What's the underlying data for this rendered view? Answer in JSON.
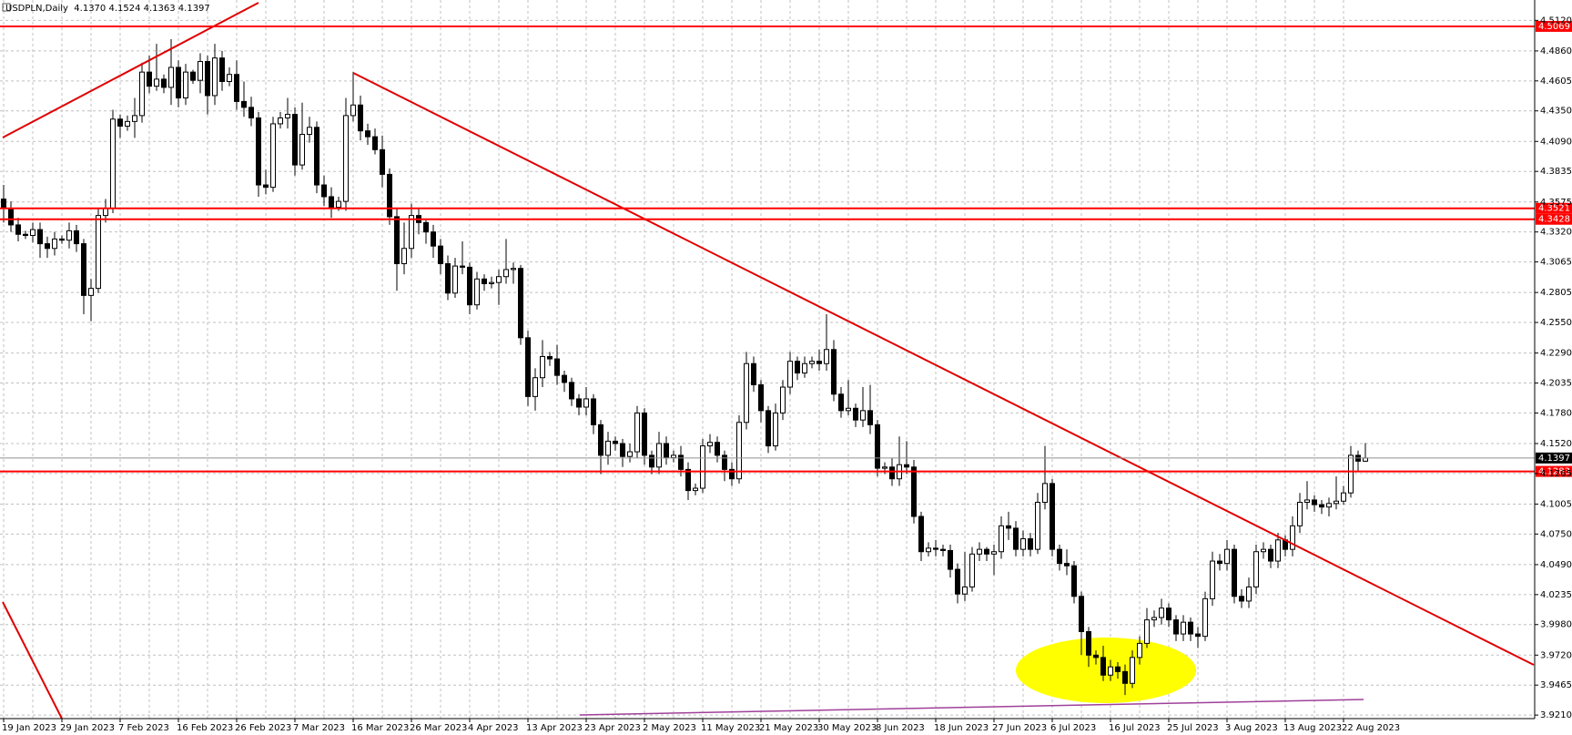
{
  "chart_data": {
    "type": "candlestick",
    "title": "USDPLN,Daily  4.1370 4.1524 4.1363 4.1397",
    "categories": [
      "19 Jan 2023",
      null,
      null,
      null,
      null,
      null,
      null,
      null,
      "29 Jan 2023",
      null,
      null,
      null,
      null,
      null,
      null,
      null,
      "7 Feb 2023",
      null,
      null,
      null,
      null,
      null,
      null,
      null,
      "16 Feb 2023",
      null,
      null,
      null,
      null,
      null,
      null,
      null,
      "26 Feb 2023",
      null,
      null,
      null,
      null,
      null,
      null,
      null,
      "7 Mar 2023",
      null,
      null,
      null,
      null,
      null,
      null,
      null,
      "16 Mar 2023",
      null,
      null,
      null,
      null,
      null,
      null,
      null,
      "26 Mar 2023",
      null,
      null,
      null,
      null,
      null,
      null,
      null,
      "4 Apr 2023",
      null,
      null,
      null,
      null,
      null,
      null,
      null,
      "13 Apr 2023",
      null,
      null,
      null,
      null,
      null,
      null,
      null,
      "23 Apr 2023",
      null,
      null,
      null,
      null,
      null,
      null,
      null,
      "2 May 2023",
      null,
      null,
      null,
      null,
      null,
      null,
      null,
      "11 May 2023",
      null,
      null,
      null,
      null,
      null,
      null,
      null,
      "21 May 2023",
      null,
      null,
      null,
      null,
      null,
      null,
      null,
      "30 May 2023",
      null,
      null,
      null,
      null,
      null,
      null,
      null,
      "8 Jun 2023",
      null,
      null,
      null,
      null,
      null,
      null,
      null,
      "18 Jun 2023",
      null,
      null,
      null,
      null,
      null,
      null,
      null,
      "27 Jun 2023",
      null,
      null,
      null,
      null,
      null,
      null,
      null,
      "6 Jul 2023",
      null,
      null,
      null,
      null,
      null,
      null,
      null,
      "16 Jul 2023",
      null,
      null,
      null,
      null,
      null,
      null,
      null,
      "25 Jul 2023",
      null,
      null,
      null,
      null,
      null,
      null,
      null,
      "3 Aug 2023",
      null,
      null,
      null,
      null,
      null,
      null,
      null,
      "13 Aug 2023",
      null,
      null,
      null,
      null,
      null,
      null,
      null,
      "22 Aug 2023",
      null,
      null,
      null
    ],
    "open": [
      4.36,
      4.352,
      4.338,
      4.33,
      4.329,
      4.334,
      4.322,
      4.318,
      4.326,
      4.325,
      4.333,
      4.322,
      4.278,
      4.284,
      4.346,
      4.352,
      4.428,
      4.422,
      4.426,
      4.431,
      4.468,
      4.456,
      4.462,
      4.455,
      4.472,
      4.446,
      4.468,
      4.461,
      4.477,
      4.448,
      4.48,
      4.46,
      4.466,
      4.443,
      4.438,
      4.429,
      4.372,
      4.37,
      4.424,
      4.429,
      4.432,
      4.389,
      4.415,
      4.421,
      4.372,
      4.362,
      4.353,
      4.358,
      4.431,
      4.44,
      4.418,
      4.413,
      4.402,
      4.381,
      4.345,
      4.305,
      4.318,
      4.346,
      4.34,
      4.332,
      4.32,
      4.305,
      4.28,
      4.303,
      4.302,
      4.27,
      4.292,
      4.288,
      4.289,
      4.294,
      4.3,
      4.301,
      4.242,
      4.192,
      4.208,
      4.226,
      4.224,
      4.21,
      4.204,
      4.19,
      4.183,
      4.19,
      4.168,
      4.142,
      4.154,
      4.152,
      4.141,
      4.145,
      4.178,
      4.142,
      4.132,
      4.152,
      4.14,
      4.142,
      4.13,
      4.112,
      4.114,
      4.15,
      4.153,
      4.142,
      4.13,
      4.122,
      4.17,
      4.22,
      4.202,
      4.18,
      4.15,
      4.178,
      4.2,
      4.222,
      4.212,
      4.22,
      4.222,
      4.22,
      4.232,
      4.194,
      4.18,
      4.182,
      4.172,
      4.18,
      4.168,
      4.131,
      4.132,
      4.122,
      4.134,
      4.132,
      4.09,
      4.06,
      4.063,
      4.062,
      4.061,
      4.045,
      4.024,
      4.03,
      4.058,
      4.062,
      4.058,
      4.06,
      4.082,
      4.08,
      4.062,
      4.071,
      4.062,
      4.102,
      4.118,
      4.062,
      4.05,
      4.048,
      4.022,
      3.992,
      3.972,
      3.97,
      3.955,
      3.962,
      3.958,
      3.948,
      3.97,
      3.982,
      4.002,
      4.004,
      4.012,
      4.002,
      3.99,
      4.0,
      3.99,
      3.988,
      4.02,
      4.052,
      4.05,
      4.062,
      4.022,
      4.018,
      4.03,
      4.06,
      4.062,
      4.052,
      4.07,
      4.062,
      4.082,
      4.102,
      4.104,
      4.1,
      4.098,
      4.101,
      4.103,
      4.11,
      4.142,
      4.137
    ],
    "high": [
      4.372,
      4.358,
      4.344,
      4.333,
      4.34,
      4.34,
      4.328,
      4.332,
      4.329,
      4.34,
      4.338,
      4.326,
      4.292,
      4.352,
      4.36,
      4.436,
      4.432,
      4.431,
      4.446,
      4.476,
      4.482,
      4.492,
      4.466,
      4.496,
      4.478,
      4.475,
      4.47,
      4.484,
      4.482,
      4.492,
      4.486,
      4.472,
      4.478,
      4.46,
      4.447,
      4.434,
      4.385,
      4.43,
      4.434,
      4.446,
      4.438,
      4.442,
      4.43,
      4.426,
      4.38,
      4.37,
      4.362,
      4.446,
      4.468,
      4.448,
      4.424,
      4.42,
      4.414,
      4.386,
      4.352,
      4.34,
      4.356,
      4.352,
      4.342,
      4.338,
      4.326,
      4.312,
      4.31,
      4.324,
      4.306,
      4.298,
      4.296,
      4.294,
      4.3,
      4.326,
      4.306,
      4.304,
      4.248,
      4.216,
      4.24,
      4.23,
      4.236,
      4.214,
      4.208,
      4.194,
      4.2,
      4.194,
      4.172,
      4.162,
      4.158,
      4.156,
      4.152,
      4.184,
      4.182,
      4.146,
      4.162,
      4.158,
      4.146,
      4.15,
      4.136,
      4.118,
      4.156,
      4.16,
      4.158,
      4.146,
      4.136,
      4.176,
      4.23,
      4.226,
      4.206,
      4.184,
      4.186,
      4.206,
      4.23,
      4.226,
      4.226,
      4.226,
      4.232,
      4.262,
      4.24,
      4.2,
      4.206,
      4.186,
      4.2,
      4.202,
      4.172,
      4.136,
      4.14,
      4.158,
      4.154,
      4.138,
      4.094,
      4.068,
      4.07,
      4.066,
      4.066,
      4.05,
      4.06,
      4.064,
      4.068,
      4.064,
      4.066,
      4.09,
      4.094,
      4.086,
      4.078,
      4.076,
      4.11,
      4.15,
      4.122,
      4.066,
      4.062,
      4.052,
      4.026,
      3.996,
      3.976,
      3.98,
      3.968,
      3.966,
      3.964,
      3.976,
      3.988,
      4.012,
      4.01,
      4.02,
      4.016,
      4.006,
      4.006,
      4.004,
      3.996,
      4.026,
      4.06,
      4.058,
      4.07,
      4.066,
      4.028,
      4.038,
      4.066,
      4.068,
      4.066,
      4.076,
      4.074,
      4.09,
      4.11,
      4.12,
      4.108,
      4.104,
      4.106,
      4.124,
      4.116,
      4.15,
      4.146,
      4.1524
    ],
    "low": [
      4.34,
      4.332,
      4.324,
      4.326,
      4.323,
      4.31,
      4.31,
      4.312,
      4.322,
      4.318,
      4.315,
      4.262,
      4.256,
      4.28,
      4.34,
      4.348,
      4.412,
      4.418,
      4.412,
      4.425,
      4.45,
      4.452,
      4.45,
      4.44,
      4.438,
      4.44,
      4.458,
      4.45,
      4.432,
      4.44,
      4.452,
      4.456,
      4.436,
      4.43,
      4.422,
      4.362,
      4.364,
      4.366,
      4.42,
      4.42,
      4.38,
      4.385,
      4.408,
      4.365,
      4.354,
      4.344,
      4.35,
      4.35,
      4.426,
      4.41,
      4.406,
      4.398,
      4.37,
      4.338,
      4.282,
      4.296,
      4.31,
      4.33,
      4.322,
      4.31,
      4.296,
      4.274,
      4.276,
      4.296,
      4.262,
      4.266,
      4.282,
      4.284,
      4.27,
      4.288,
      4.288,
      4.236,
      4.184,
      4.18,
      4.2,
      4.218,
      4.202,
      4.196,
      4.184,
      4.176,
      4.176,
      4.16,
      4.126,
      4.134,
      4.146,
      4.132,
      4.136,
      4.14,
      4.134,
      4.126,
      4.126,
      4.134,
      4.136,
      4.124,
      4.104,
      4.108,
      4.11,
      4.144,
      4.136,
      4.12,
      4.116,
      4.118,
      4.164,
      4.196,
      4.17,
      4.144,
      4.146,
      4.172,
      4.194,
      4.206,
      4.208,
      4.216,
      4.214,
      4.214,
      4.188,
      4.174,
      4.176,
      4.166,
      4.166,
      4.16,
      4.124,
      4.126,
      4.116,
      4.116,
      4.126,
      4.084,
      4.052,
      4.056,
      4.056,
      4.056,
      4.038,
      4.016,
      4.018,
      4.026,
      4.052,
      4.052,
      4.04,
      4.054,
      4.07,
      4.056,
      4.056,
      4.056,
      4.058,
      4.096,
      4.056,
      4.044,
      4.04,
      4.016,
      3.972,
      3.962,
      3.964,
      3.95,
      3.95,
      3.952,
      3.938,
      3.944,
      3.964,
      3.978,
      3.996,
      3.998,
      3.996,
      3.984,
      3.984,
      3.984,
      3.978,
      3.984,
      4.014,
      4.044,
      4.044,
      4.016,
      4.012,
      4.012,
      4.024,
      4.054,
      4.046,
      4.046,
      4.056,
      4.056,
      4.076,
      4.096,
      4.094,
      4.092,
      4.09,
      4.096,
      4.1,
      4.106,
      4.128,
      4.1363
    ],
    "close": [
      4.352,
      4.338,
      4.33,
      4.329,
      4.334,
      4.322,
      4.318,
      4.326,
      4.325,
      4.333,
      4.322,
      4.278,
      4.284,
      4.346,
      4.352,
      4.428,
      4.422,
      4.426,
      4.431,
      4.468,
      4.456,
      4.462,
      4.455,
      4.472,
      4.446,
      4.468,
      4.461,
      4.477,
      4.448,
      4.48,
      4.46,
      4.466,
      4.443,
      4.438,
      4.429,
      4.372,
      4.37,
      4.424,
      4.429,
      4.432,
      4.389,
      4.415,
      4.421,
      4.372,
      4.362,
      4.353,
      4.358,
      4.431,
      4.44,
      4.418,
      4.413,
      4.402,
      4.381,
      4.345,
      4.305,
      4.318,
      4.346,
      4.34,
      4.332,
      4.32,
      4.305,
      4.28,
      4.303,
      4.302,
      4.27,
      4.292,
      4.288,
      4.289,
      4.294,
      4.3,
      4.301,
      4.242,
      4.192,
      4.208,
      4.226,
      4.224,
      4.21,
      4.204,
      4.19,
      4.183,
      4.19,
      4.168,
      4.142,
      4.154,
      4.152,
      4.141,
      4.145,
      4.178,
      4.142,
      4.132,
      4.152,
      4.14,
      4.142,
      4.13,
      4.112,
      4.114,
      4.15,
      4.153,
      4.142,
      4.13,
      4.122,
      4.17,
      4.22,
      4.202,
      4.18,
      4.15,
      4.178,
      4.2,
      4.222,
      4.212,
      4.22,
      4.222,
      4.22,
      4.232,
      4.194,
      4.18,
      4.182,
      4.172,
      4.18,
      4.168,
      4.131,
      4.132,
      4.122,
      4.134,
      4.132,
      4.09,
      4.06,
      4.063,
      4.062,
      4.061,
      4.045,
      4.024,
      4.03,
      4.058,
      4.062,
      4.058,
      4.06,
      4.082,
      4.08,
      4.062,
      4.071,
      4.062,
      4.102,
      4.118,
      4.062,
      4.05,
      4.048,
      4.022,
      3.992,
      3.972,
      3.97,
      3.955,
      3.962,
      3.958,
      3.948,
      3.97,
      3.982,
      4.002,
      4.004,
      4.012,
      4.002,
      3.99,
      4.0,
      3.99,
      3.988,
      4.02,
      4.052,
      4.05,
      4.062,
      4.022,
      4.018,
      4.03,
      4.06,
      4.062,
      4.052,
      4.07,
      4.062,
      4.082,
      4.102,
      4.104,
      4.1,
      4.098,
      4.101,
      4.103,
      4.11,
      4.142,
      4.137,
      4.1397
    ],
    "bull_color": "#ffffff",
    "bear_color": "#000000",
    "outline_color": "#000000",
    "ylim": [
      3.918,
      4.527
    ],
    "yticks": [
      {
        "value": 4.512,
        "label": "4.5120"
      },
      {
        "value": 4.486,
        "label": "4.4860"
      },
      4.4605,
      {
        "value": 4.435,
        "label": "4.4350"
      },
      {
        "value": 4.409,
        "label": "4.4090"
      },
      4.3835,
      4.3575,
      {
        "value": 4.332,
        "label": "4.3320"
      },
      4.3065,
      4.2805,
      {
        "value": 4.255,
        "label": "4.2550"
      },
      {
        "value": 4.229,
        "label": "4.2290"
      },
      4.2035,
      {
        "value": 4.178,
        "label": "4.1780"
      },
      {
        "value": 4.152,
        "label": "4.1520"
      },
      4.1265,
      4.1005,
      {
        "value": 4.075,
        "label": "4.0750"
      },
      {
        "value": 4.049,
        "label": "4.0490"
      },
      4.0235,
      {
        "value": 3.998,
        "label": "3.9980"
      },
      {
        "value": 3.972,
        "label": "3.9720"
      },
      3.9465,
      {
        "value": 3.921,
        "label": "3.9210"
      }
    ],
    "grid": true,
    "levels": [
      4.5069,
      4.3521,
      4.3428,
      4.1283
    ],
    "level_color": "#ff0000",
    "last_price": 4.1397,
    "last_price_color": "#000000"
  }
}
